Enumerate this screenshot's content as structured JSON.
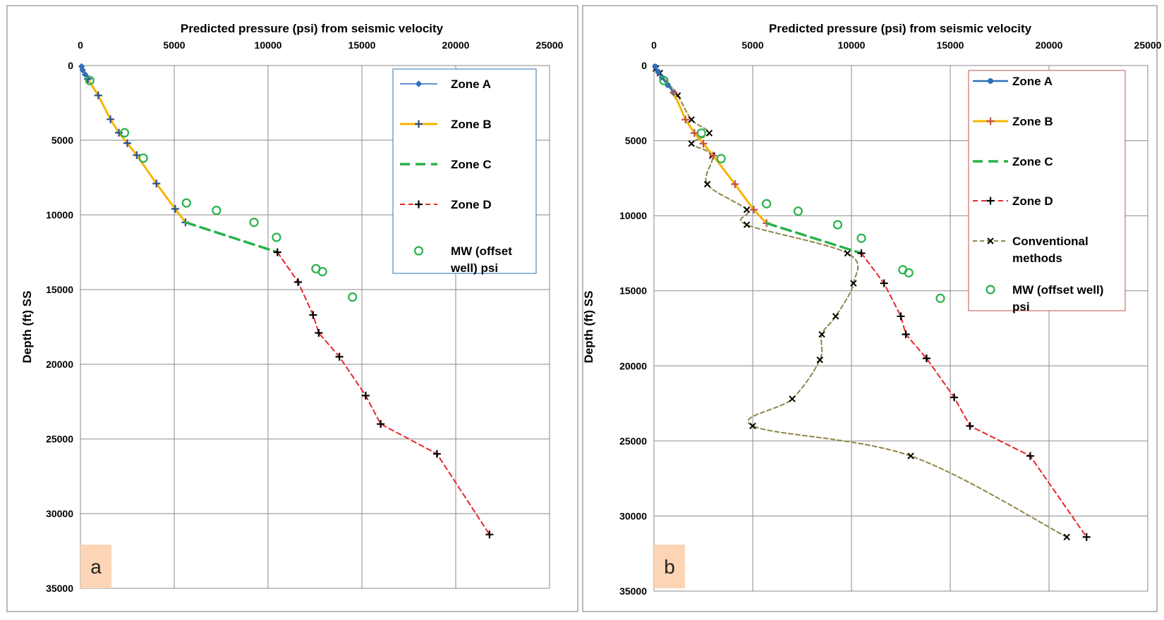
{
  "chart_data": [
    {
      "type": "line",
      "panel_label": "a",
      "title": "Predicted pressure (psi) from seismic velocity",
      "xlabel": "Predicted pressure (psi) from seismic velocity",
      "ylabel": "Depth (ft) SS",
      "xlim": [
        0,
        25000
      ],
      "ylim": [
        0,
        35000
      ],
      "y_inverted": true,
      "x_axis_position": "top",
      "xticks": [
        "0",
        "5000",
        "10000",
        "15000",
        "20000",
        "25000"
      ],
      "yticks": [
        "0",
        "5000",
        "10000",
        "15000",
        "20000",
        "25000",
        "30000",
        "35000"
      ],
      "grid": true,
      "legend_position": "top-right",
      "series": [
        {
          "name": "Zone A",
          "style": "line",
          "color": "#2e6fb7",
          "dash": "solid",
          "width": 1.5,
          "marker": "diamond",
          "x": [
            60,
            120,
            250,
            400
          ],
          "y": [
            60,
            300,
            600,
            900
          ]
        },
        {
          "name": "Zone B",
          "style": "line",
          "color": "#f7b500",
          "dash": "solid",
          "width": 3,
          "marker": "plus",
          "marker_color": "#2e4f8c",
          "x": [
            400,
            950,
            1600,
            2050,
            2500,
            3000,
            4050,
            5050,
            5600
          ],
          "y": [
            900,
            2000,
            3600,
            4500,
            5200,
            6000,
            7900,
            9600,
            10500
          ]
        },
        {
          "name": "Zone C",
          "style": "line",
          "color": "#27b24a",
          "dash": "14 8",
          "width": 3.5,
          "marker": "none",
          "x": [
            5600,
            10500
          ],
          "y": [
            10500,
            12500
          ]
        },
        {
          "name": "Zone D",
          "style": "line",
          "color": "#e8262b",
          "dash": "7 5",
          "width": 2,
          "marker": "plus",
          "marker_color": "#000000",
          "x": [
            10500,
            11600,
            12400,
            12700,
            13800,
            15200,
            16000,
            19000,
            21800
          ],
          "y": [
            12500,
            14500,
            16700,
            17900,
            19500,
            22100,
            24000,
            26000,
            31400
          ]
        },
        {
          "name": "MW (offset well) psi",
          "legend_lines": [
            "MW (offset",
            "well) psi"
          ],
          "style": "marker",
          "color": "#27b24a",
          "marker": "circle",
          "x": [
            500,
            2350,
            3350,
            5650,
            7250,
            9250,
            10450,
            12550,
            12900,
            14500
          ],
          "y": [
            1000,
            4500,
            6200,
            9200,
            9700,
            10500,
            11500,
            13600,
            13800,
            15500
          ]
        }
      ]
    },
    {
      "type": "line",
      "panel_label": "b",
      "title": "Predicted pressure (psi) from seismic velocity",
      "xlabel": "Predicted pressure (psi) from seismic velocity",
      "ylabel": "Depth (ft) SS",
      "xlim": [
        0,
        25000
      ],
      "ylim": [
        0,
        35000
      ],
      "y_inverted": true,
      "x_axis_position": "top",
      "xticks": [
        "0",
        "5000",
        "10000",
        "15000",
        "20000",
        "25000"
      ],
      "yticks": [
        "0",
        "5000",
        "10000",
        "15000",
        "20000",
        "25000",
        "30000",
        "35000"
      ],
      "grid": true,
      "legend_position": "top-right",
      "series": [
        {
          "name": "Zone A",
          "style": "line",
          "color": "#2e6fb7",
          "dash": "solid",
          "width": 2.5,
          "marker": "dot",
          "x": [
            60,
            200,
            400,
            700,
            1000
          ],
          "y": [
            60,
            400,
            800,
            1300,
            1800
          ]
        },
        {
          "name": "Zone B",
          "style": "line",
          "color": "#f7b500",
          "dash": "solid",
          "width": 3,
          "marker": "plus",
          "marker_color": "#c0504d",
          "x": [
            1000,
            1600,
            2050,
            2500,
            3000,
            4100,
            5050,
            5700
          ],
          "y": [
            1800,
            3600,
            4500,
            5200,
            6000,
            7900,
            9600,
            10500
          ]
        },
        {
          "name": "Zone C",
          "style": "line",
          "color": "#27b24a",
          "dash": "14 8",
          "width": 3.5,
          "marker": "none",
          "x": [
            5700,
            10500
          ],
          "y": [
            10500,
            12500
          ]
        },
        {
          "name": "Zone D",
          "style": "line",
          "color": "#e8262b",
          "dash": "7 5",
          "width": 2,
          "marker": "plus",
          "marker_color": "#000000",
          "x": [
            10500,
            11650,
            12500,
            12750,
            13800,
            15200,
            16000,
            19050,
            21900
          ],
          "y": [
            12500,
            14500,
            16700,
            17900,
            19500,
            22100,
            24000,
            26000,
            31400
          ]
        },
        {
          "name": "Conventional methods",
          "legend_lines": [
            "Conventional",
            "methods"
          ],
          "style": "line",
          "color": "#8e8548",
          "dash": "6 4",
          "width": 2,
          "marker": "x",
          "marker_color": "#000000",
          "x": [
            100,
            300,
            1200,
            1900,
            2800,
            1900,
            2950,
            2700,
            4700,
            4700,
            9800,
            10100,
            9200,
            8500,
            8400,
            7000,
            5000,
            13000,
            20900
          ],
          "y": [
            200,
            500,
            2000,
            3600,
            4500,
            5200,
            6000,
            7900,
            9600,
            10600,
            12500,
            14500,
            16700,
            17900,
            19600,
            22200,
            24000,
            26000,
            31400
          ]
        },
        {
          "name": "MW (offset well) psi",
          "legend_lines": [
            "MW (offset well)",
            "psi"
          ],
          "style": "marker",
          "color": "#27b24a",
          "marker": "circle",
          "x": [
            500,
            2400,
            3400,
            5700,
            7300,
            9300,
            10500,
            12600,
            12900,
            14500
          ],
          "y": [
            1000,
            4500,
            6200,
            9200,
            9700,
            10600,
            11500,
            13600,
            13800,
            15500
          ]
        }
      ]
    }
  ]
}
